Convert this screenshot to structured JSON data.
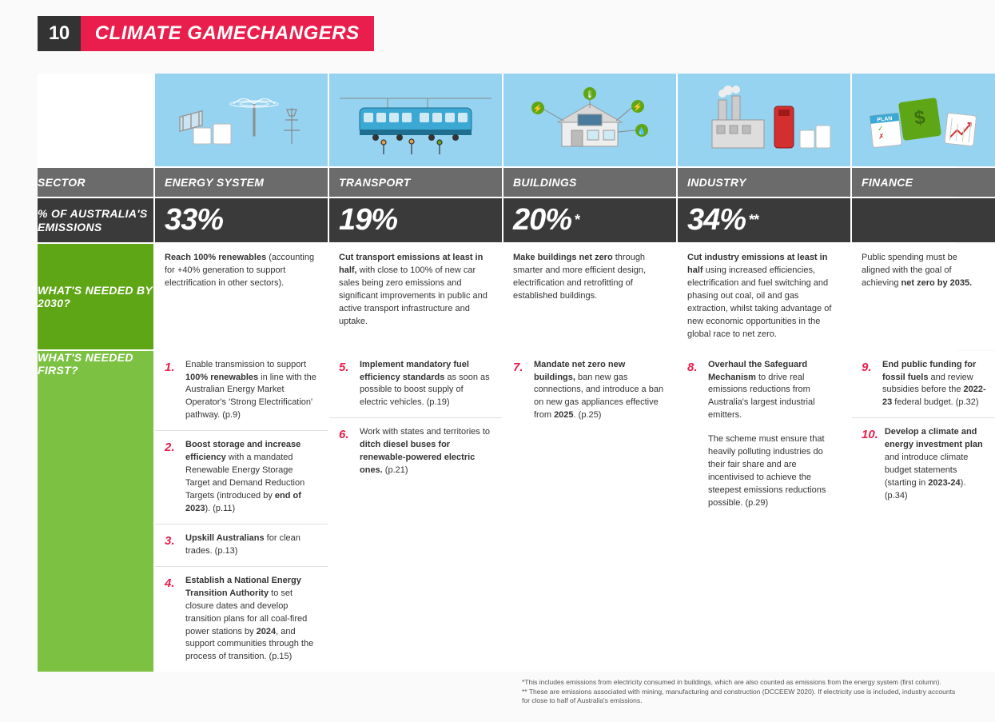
{
  "header": {
    "num": "10",
    "title": "CLIMATE GAMECHANGERS"
  },
  "rows": {
    "sector_label": "SECTOR",
    "emissions_label": "% OF AUSTRALIA'S EMISSIONS",
    "needed2030_label": "WHAT'S NEEDED BY 2030?",
    "neededfirst_label": "WHAT'S NEEDED FIRST?"
  },
  "sectors": {
    "energy": {
      "name": "ENERGY SYSTEM",
      "pct": "33%",
      "asterisk": "",
      "needed": "<b>Reach 100% renewables</b> (accounting for +40% generation to support electrification in other sectors).",
      "actions": [
        {
          "n": "1.",
          "t": "Enable transmission to support <b>100% renewables</b> in line with the Australian Energy Market Operator's 'Strong Electrification' pathway. (p.9)"
        },
        {
          "n": "2.",
          "t": "<b>Boost storage and increase efficiency</b> with a mandated Renewable Energy Storage Target and Demand Reduction Targets (introduced by <b>end of 2023</b>). (p.11)"
        },
        {
          "n": "3.",
          "t": "<b>Upskill Australians</b> for clean trades. (p.13)"
        },
        {
          "n": "4.",
          "t": "<b>Establish a National Energy Transition Authority</b> to set closure dates and develop transition plans for all coal-fired power stations by <b>2024</b>, and support communities through the process of transition. (p.15)"
        }
      ]
    },
    "transport": {
      "name": "TRANSPORT",
      "pct": "19%",
      "asterisk": "",
      "needed": "<b>Cut transport emissions at least in half,</b> with close to 100% of new car sales being zero emissions and significant improvements in public and active transport infrastructure and uptake.",
      "actions": [
        {
          "n": "5.",
          "t": "<b>Implement mandatory fuel efficiency standards</b> as soon as possible to boost supply of electric vehicles. (p.19)"
        },
        {
          "n": "6.",
          "t": "Work with states and territories to <b>ditch diesel buses for renewable-powered electric ones.</b> (p.21)"
        }
      ]
    },
    "buildings": {
      "name": "BUILDINGS",
      "pct": "20%",
      "asterisk": "*",
      "needed": "<b>Make buildings net zero</b> through smarter and more efficient design, electrification and retrofitting of established buildings.",
      "actions": [
        {
          "n": "7.",
          "t": "<b>Mandate net zero new buildings,</b> ban new gas connections, and introduce a ban on new gas appliances effective from <b>2025</b>. (p.25)"
        }
      ]
    },
    "industry": {
      "name": "INDUSTRY",
      "pct": "34%",
      "asterisk": "**",
      "needed": "<b>Cut industry emissions at least in half</b> using increased efficiencies, electrification and fuel switching and phasing out coal, oil and gas extraction, whilst taking advantage of new economic opportunities in the global race to net zero.",
      "actions": [
        {
          "n": "8.",
          "t": "<b>Overhaul the Safeguard Mechanism</b> to drive real emissions reductions from Australia's largest industrial emitters.",
          "extra": "The scheme must ensure that heavily polluting industries do their fair share and are incentivised to achieve the steepest emissions reductions possible. (p.29)"
        }
      ]
    },
    "finance": {
      "name": "FINANCE",
      "pct": "",
      "asterisk": "",
      "needed": "Public spending must be aligned with the goal of achieving <b>net zero by 2035.</b>",
      "actions": [
        {
          "n": "9.",
          "t": "<b>End public funding for fossil fuels</b> and review subsidies before the <b>2022-23</b> federal budget. (p.32)"
        },
        {
          "n": "10.",
          "t": "<b>Develop a climate and energy investment plan</b> and introduce climate budget statements (starting in <b>2023-24</b>). (p.34)"
        }
      ]
    }
  },
  "footnotes": {
    "f1": "*This includes emissions from electricity consumed in buildings, which are also counted as emissions from the energy system (first column).",
    "f2": "** These are emissions associated with mining, manufacturing and construction (DCCEEW 2020). If electricity use is included, industry accounts for close to half of Australia's emissions."
  },
  "colors": {
    "sky": "#95d3f0",
    "grey": "#6b6b6b",
    "darkgrey": "#3a3a3a",
    "green": "#5fa616",
    "lightgreen": "#7cc142",
    "pink": "#e91e4c"
  }
}
